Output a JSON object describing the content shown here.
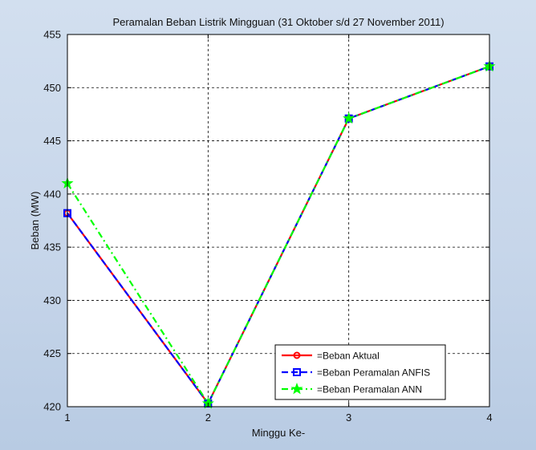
{
  "chart_data": {
    "type": "line",
    "title": "Peramalan Beban Listrik Mingguan (31 Oktober s/d 27 November 2011)",
    "xlabel": "Minggu Ke-",
    "ylabel": "Beban (MW)",
    "x": [
      1,
      2,
      3,
      4
    ],
    "xlim": [
      1,
      4
    ],
    "ylim": [
      420,
      455
    ],
    "xticks": [
      1,
      2,
      3,
      4
    ],
    "yticks": [
      420,
      425,
      430,
      435,
      440,
      445,
      450,
      455
    ],
    "grid": true,
    "legend_position": "bottom-right",
    "series": [
      {
        "name": "=Beban Aktual",
        "values": [
          438.2,
          420.3,
          447.1,
          452.0
        ],
        "color": "#ff0000",
        "line_style": "solid",
        "marker": "circle"
      },
      {
        "name": "=Beban Peramalan ANFIS",
        "values": [
          438.2,
          420.3,
          447.1,
          452.0
        ],
        "color": "#0000ff",
        "line_style": "dashed",
        "marker": "square"
      },
      {
        "name": "=Beban Peramalan ANN",
        "values": [
          441.0,
          420.3,
          447.1,
          452.0
        ],
        "color": "#00ff00",
        "line_style": "dash-dot",
        "marker": "star"
      }
    ]
  }
}
